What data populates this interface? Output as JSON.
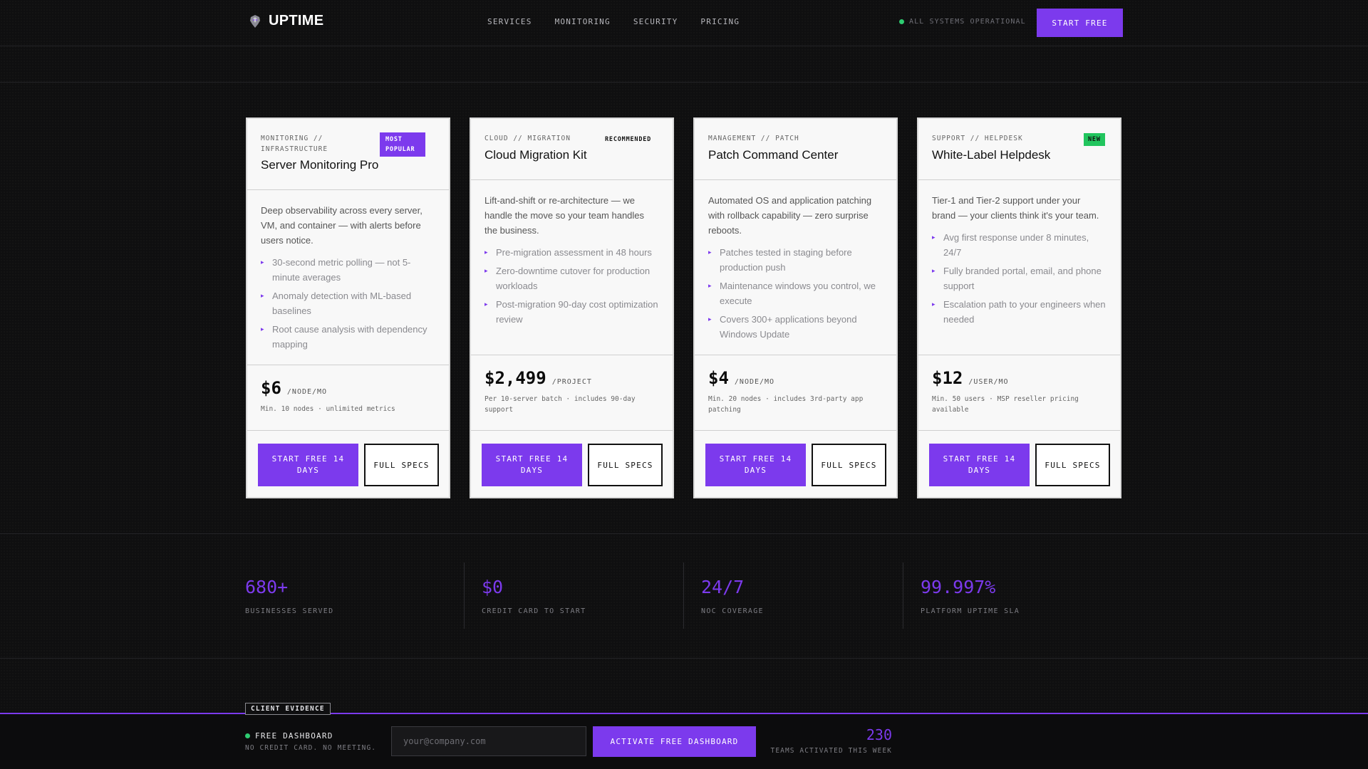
{
  "brand": {
    "name": "UPTIME",
    "logo_icon": "raven-icon"
  },
  "nav": {
    "links": [
      "SERVICES",
      "MONITORING",
      "SECURITY",
      "PRICING"
    ],
    "status": "ALL SYSTEMS OPERATIONAL",
    "cta": "START FREE"
  },
  "colors": {
    "accent": "#7c3aed",
    "status_green": "#22c55e",
    "background": "#0f0f10"
  },
  "cards": [
    {
      "category": "MONITORING // INFRASTRUCTURE",
      "title": "Server Monitoring Pro",
      "badge": "MOST POPULAR",
      "description": "Deep observability across every server, VM, and container — with alerts before users notice.",
      "features": [
        "30-second metric polling — not 5-minute averages",
        "Anomaly detection with ML-based baselines",
        "Root cause analysis with dependency mapping"
      ],
      "price": "$6",
      "unit": "/NODE/MO",
      "note": "Min. 10 nodes · unlimited metrics",
      "primary": "START FREE 14 DAYS",
      "secondary": "FULL SPECS"
    },
    {
      "category": "CLOUD // MIGRATION",
      "title": "Cloud Migration Kit",
      "badge": "RECOMMENDED",
      "description": "Lift-and-shift or re-architecture — we handle the move so your team handles the business.",
      "features": [
        "Pre-migration assessment in 48 hours",
        "Zero-downtime cutover for production workloads",
        "Post-migration 90-day cost optimization review"
      ],
      "price": "$2,499",
      "unit": "/PROJECT",
      "note": "Per 10-server batch · includes 90-day support",
      "primary": "START FREE 14 DAYS",
      "secondary": "FULL SPECS"
    },
    {
      "category": "MANAGEMENT // PATCH",
      "title": "Patch Command Center",
      "badge": "",
      "description": "Automated OS and application patching with rollback capability — zero surprise reboots.",
      "features": [
        "Patches tested in staging before production push",
        "Maintenance windows you control, we execute",
        "Covers 300+ applications beyond Windows Update"
      ],
      "price": "$4",
      "unit": "/NODE/MO",
      "note": "Min. 20 nodes · includes 3rd-party app patching",
      "primary": "START FREE 14 DAYS",
      "secondary": "FULL SPECS"
    },
    {
      "category": "SUPPORT // HELPDESK",
      "title": "White-Label Helpdesk",
      "badge": "NEW",
      "description": "Tier-1 and Tier-2 support under your brand — your clients think it's your team.",
      "features": [
        "Avg first response under 8 minutes, 24/7",
        "Fully branded portal, email, and phone support",
        "Escalation path to your engineers when needed"
      ],
      "price": "$12",
      "unit": "/USER/MO",
      "note": "Min. 50 users · MSP reseller pricing available",
      "primary": "START FREE 14 DAYS",
      "secondary": "FULL SPECS"
    }
  ],
  "stats": [
    {
      "value": "680+",
      "label": "BUSINESSES SERVED"
    },
    {
      "value": "$0",
      "label": "CREDIT CARD TO START"
    },
    {
      "value": "24/7",
      "label": "NOC COVERAGE"
    },
    {
      "value": "99.997%",
      "label": "PLATFORM UPTIME SLA"
    }
  ],
  "section_tag": "CLIENT EVIDENCE",
  "footer": {
    "title": "FREE DASHBOARD",
    "subtitle": "NO CREDIT CARD. NO MEETING.",
    "email_placeholder": "your@company.com",
    "email_value": "",
    "cta": "ACTIVATE FREE DASHBOARD",
    "count": "230",
    "count_label": "TEAMS ACTIVATED THIS WEEK"
  }
}
